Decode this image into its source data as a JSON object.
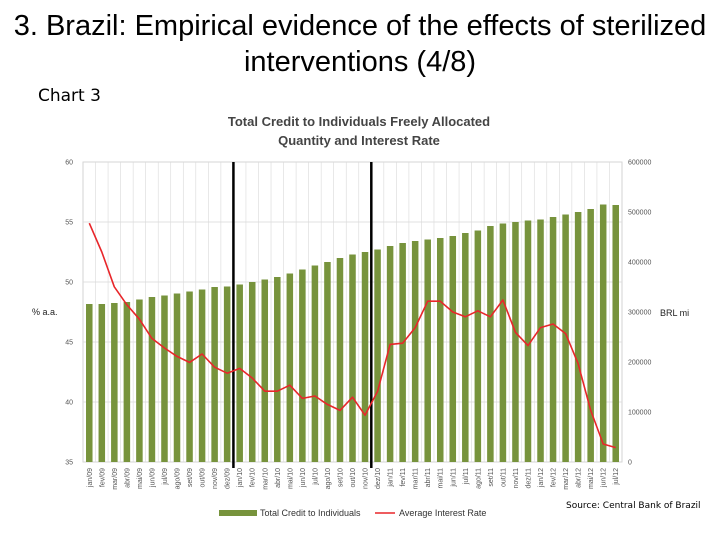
{
  "slide": {
    "title": "3. Brazil: Empirical evidence of the effects of sterilized interventions (4/8)",
    "chart_label": "Chart 3",
    "source": "Source: Central Bank of Brazil"
  },
  "colors": {
    "bar": "#77933C",
    "line": "#E8262A",
    "marker": "#000000",
    "grid": "#D9D9D9"
  },
  "chart_data": {
    "type": "bar",
    "title_line1": "Total Credit to Individuals Freely Allocated",
    "title_line2": "Quantity and  Interest Rate",
    "categories": [
      "jan/09",
      "fev/09",
      "mar/09",
      "abr/09",
      "mai/09",
      "jun/09",
      "jul/09",
      "ago/09",
      "set/09",
      "out/09",
      "nov/09",
      "dez/09",
      "jan/10",
      "fev/10",
      "mar/10",
      "abr/10",
      "mai/10",
      "jun/10",
      "jul/10",
      "ago/10",
      "set/10",
      "out/10",
      "nov/10",
      "dez/10",
      "jan/11",
      "fev/11",
      "mar/11",
      "abr/11",
      "mai/11",
      "jun/11",
      "jul/11",
      "ago/11",
      "set/11",
      "out/11",
      "nov/11",
      "dez/11",
      "jan/12",
      "fev/12",
      "mar/12",
      "abr/12",
      "mai/12",
      "jun/12",
      "jul/12"
    ],
    "x_tick_labels": [
      "jan/09",
      "fev/09",
      "mar/09",
      "abr/09",
      "mai/09",
      "jun/09",
      "jul/09",
      "ago/09",
      "set/09",
      "out/09",
      "nov/09",
      "dez/09",
      "jan/10",
      "fev/10",
      "mar/10",
      "abr/10",
      "mai/10",
      "jun/10",
      "jul/10",
      "ago/10",
      "set/10",
      "out/10",
      "nov/10",
      "dez/10",
      "jan/11",
      "fev/11",
      "mar/11",
      "abr/11",
      "mai/11",
      "jun/11",
      "jul/11",
      "ago/11",
      "set/11",
      "out/11",
      "nov/11",
      "dez/11",
      "jan/12",
      "fev/12",
      "mar/12",
      "abr/12",
      "mai/12",
      "jun/12",
      "jul/12"
    ],
    "series": [
      {
        "name": "Total Credit to Individuals",
        "type": "bar",
        "axis": "right",
        "values": [
          316000,
          316000,
          318000,
          320000,
          325000,
          330000,
          333000,
          337000,
          341000,
          345000,
          350000,
          351000,
          355000,
          360000,
          365000,
          370000,
          377000,
          385000,
          393000,
          400000,
          408000,
          415000,
          420000,
          425000,
          432000,
          438000,
          442000,
          445000,
          448000,
          452000,
          458000,
          463000,
          472000,
          477000,
          480000,
          483000,
          485000,
          490000,
          495000,
          500000,
          506000,
          515000,
          514000
        ]
      },
      {
        "name": "Average Interest Rate",
        "type": "line",
        "axis": "left",
        "values": [
          54.9,
          52.5,
          49.6,
          48.1,
          46.9,
          45.3,
          44.5,
          43.8,
          43.3,
          44.0,
          42.9,
          42.4,
          42.8,
          42.0,
          40.9,
          40.9,
          41.4,
          40.3,
          40.5,
          39.8,
          39.3,
          40.4,
          38.9,
          40.9,
          44.8,
          44.9,
          46.2,
          48.4,
          48.4,
          47.5,
          47.1,
          47.6,
          47.1,
          48.5,
          45.8,
          44.7,
          46.2,
          46.5,
          45.7,
          43.2,
          39.3,
          36.5,
          36.2
        ]
      }
    ],
    "y_left": {
      "label": "% a.a.",
      "min": 35,
      "max": 60,
      "ticks": [
        "35",
        "40",
        "45",
        "50",
        "55",
        "60"
      ]
    },
    "y_right": {
      "label": "BRL mi",
      "min": 0,
      "max": 600000,
      "ticks": [
        "0",
        "100000",
        "200000",
        "300000",
        "400000",
        "500000",
        "600000"
      ]
    },
    "vertical_markers": [
      "dez/09",
      "nov/10"
    ],
    "legend": {
      "position": "bottom",
      "items": [
        "Total Credit to Individuals",
        "Average Interest Rate"
      ]
    },
    "grid": true
  }
}
